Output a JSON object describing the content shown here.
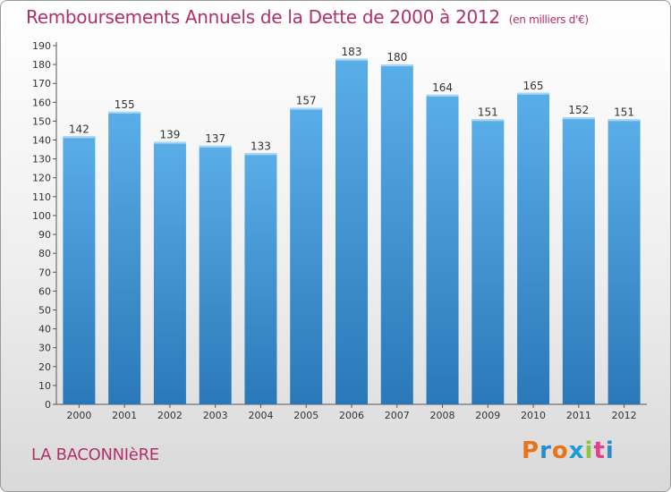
{
  "header": {
    "title": "Remboursements Annuels de la Dette de 2000 à 2012",
    "unit": "(en milliers d'€)"
  },
  "footer": {
    "commune": "LA BACONNIèRE",
    "logo_text": "Proxiti",
    "logo_colors": [
      "#e8731a",
      "#2e8bc9",
      "#e8731a",
      "#1e9bd7",
      "#8cc43c",
      "#e23f8c",
      "#2e8bc9"
    ]
  },
  "colors": {
    "bar_light": "#5aaee8",
    "bar_dark": "#2a78b8",
    "title": "#b0306a"
  },
  "chart_data": {
    "type": "bar",
    "title": "Remboursements Annuels de la Dette de 2000 à 2012",
    "subtitle": "(en milliers d'€)",
    "xlabel": "",
    "ylabel": "",
    "categories": [
      "2000",
      "2001",
      "2002",
      "2003",
      "2004",
      "2005",
      "2006",
      "2007",
      "2008",
      "2009",
      "2010",
      "2011",
      "2012"
    ],
    "values": [
      142,
      155,
      139,
      137,
      133,
      157,
      183,
      180,
      164,
      151,
      165,
      152,
      151
    ],
    "ylim": [
      0,
      190
    ],
    "yticks": [
      0,
      10,
      20,
      30,
      40,
      50,
      60,
      70,
      80,
      90,
      100,
      110,
      120,
      130,
      140,
      150,
      160,
      170,
      180,
      190
    ],
    "grid": false,
    "legend": "none"
  }
}
